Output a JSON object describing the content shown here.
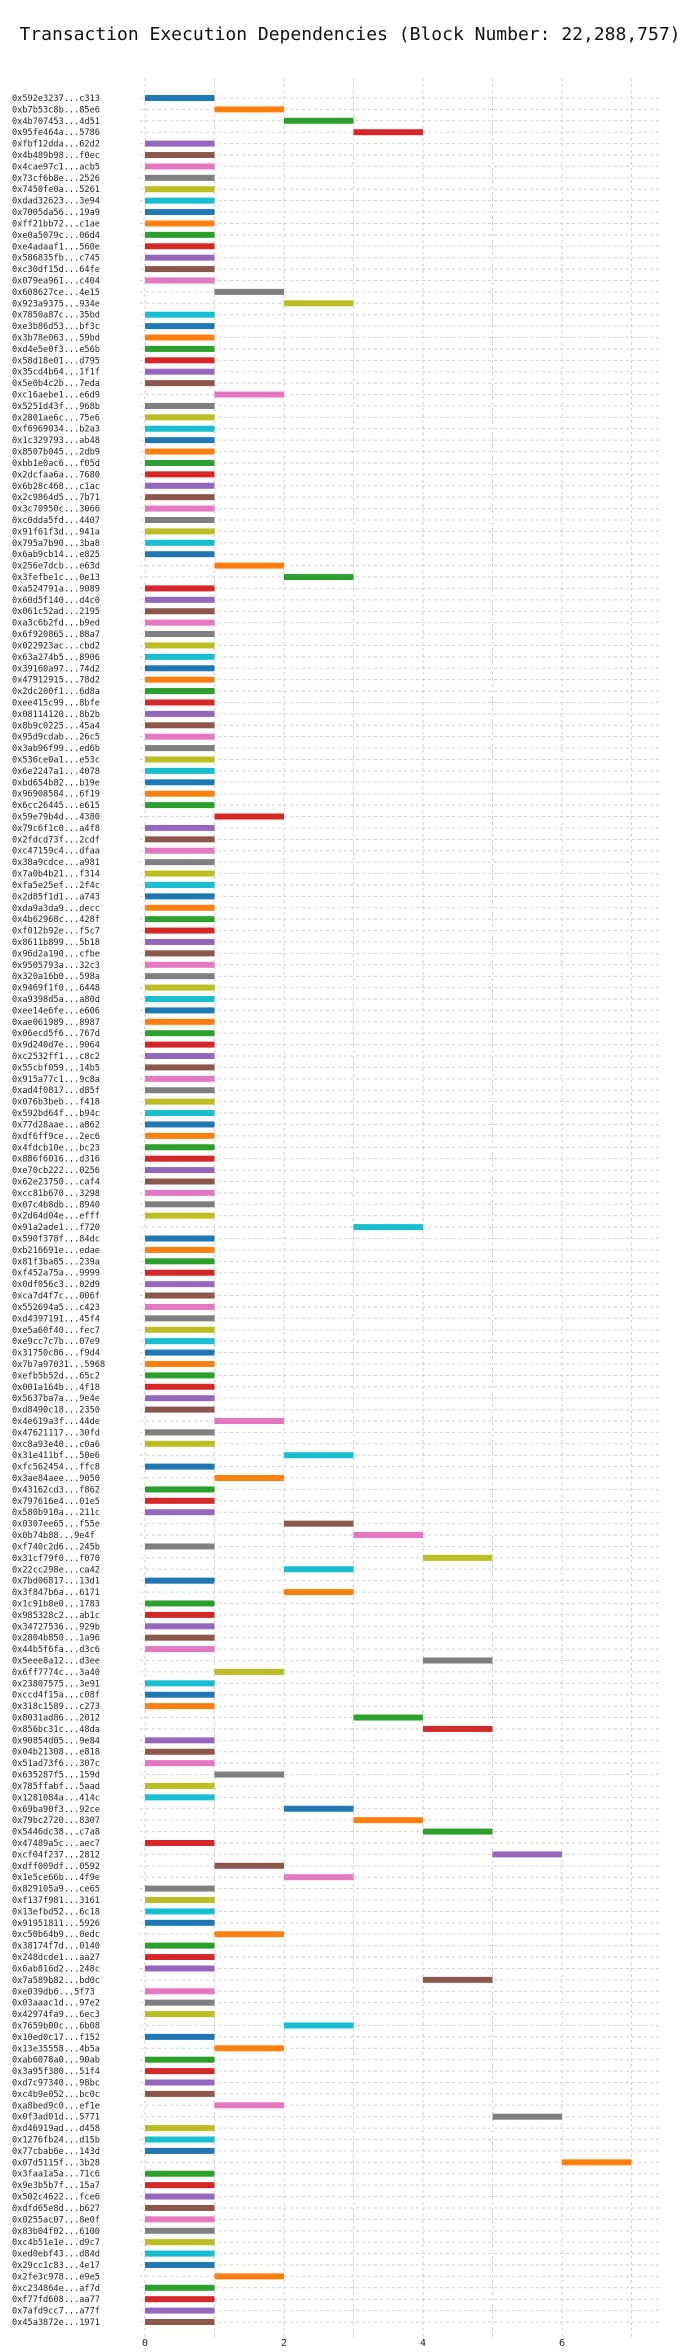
{
  "chart_data": {
    "type": "bar",
    "orientation": "horizontal-gantt",
    "title": "Transaction Execution Dependencies (Block Number: 22,288,757)",
    "xlabel": "",
    "ylabel": "",
    "xlim": [
      0,
      7
    ],
    "x_ticks": [
      0,
      2,
      4,
      6
    ],
    "grid": true,
    "legend": "none",
    "palette": [
      "#1f77b4",
      "#ff7f0e",
      "#2ca02c",
      "#d62728",
      "#9467bd",
      "#8c564b",
      "#e377c2",
      "#7f7f7f",
      "#bcbd22",
      "#17becf"
    ],
    "tasks": [
      {
        "label": "0x592e3237...c313",
        "start": 0,
        "end": 1
      },
      {
        "label": "0xb7b53c8b...85e6",
        "start": 1,
        "end": 2
      },
      {
        "label": "0x4b707453...4d51",
        "start": 2,
        "end": 3
      },
      {
        "label": "0x95fe464a...5786",
        "start": 3,
        "end": 4
      },
      {
        "label": "0xfbf12dda...62d2",
        "start": 0,
        "end": 1
      },
      {
        "label": "0x4b489b98...f0ec",
        "start": 0,
        "end": 1
      },
      {
        "label": "0x4cae97c1...acb5",
        "start": 0,
        "end": 1
      },
      {
        "label": "0x73cf6b8e...2526",
        "start": 0,
        "end": 1
      },
      {
        "label": "0x7450fe0a...5261",
        "start": 0,
        "end": 1
      },
      {
        "label": "0xdad32623...3e94",
        "start": 0,
        "end": 1
      },
      {
        "label": "0x7005da56...19a9",
        "start": 0,
        "end": 1
      },
      {
        "label": "0xff21bb72...c1ae",
        "start": 0,
        "end": 1
      },
      {
        "label": "0xe0a5079c...06d4",
        "start": 0,
        "end": 1
      },
      {
        "label": "0xe4adaaf1...560e",
        "start": 0,
        "end": 1
      },
      {
        "label": "0x586835fb...c745",
        "start": 0,
        "end": 1
      },
      {
        "label": "0xc30df15d...64fe",
        "start": 0,
        "end": 1
      },
      {
        "label": "0x079ea961...c404",
        "start": 0,
        "end": 1
      },
      {
        "label": "0x608627ce...4e15",
        "start": 1,
        "end": 2
      },
      {
        "label": "0x923a9375...934e",
        "start": 2,
        "end": 3
      },
      {
        "label": "0x7850a87c...35bd",
        "start": 0,
        "end": 1
      },
      {
        "label": "0xe3b86d53...bf3c",
        "start": 0,
        "end": 1
      },
      {
        "label": "0x3b78e063...59bd",
        "start": 0,
        "end": 1
      },
      {
        "label": "0xd4e5e0f3...e56b",
        "start": 0,
        "end": 1
      },
      {
        "label": "0x58d18e01...d795",
        "start": 0,
        "end": 1
      },
      {
        "label": "0x35cd4b64...1f1f",
        "start": 0,
        "end": 1
      },
      {
        "label": "0x5e0b4c2b...7eda",
        "start": 0,
        "end": 1
      },
      {
        "label": "0xc16aebe1...e6d9",
        "start": 1,
        "end": 2
      },
      {
        "label": "0x5251d43f...968b",
        "start": 0,
        "end": 1
      },
      {
        "label": "0x2801ae6c...75e6",
        "start": 0,
        "end": 1
      },
      {
        "label": "0xf6969034...b2a3",
        "start": 0,
        "end": 1
      },
      {
        "label": "0x1c329793...ab48",
        "start": 0,
        "end": 1
      },
      {
        "label": "0x8507b045...2db9",
        "start": 0,
        "end": 1
      },
      {
        "label": "0xbb1e0ac6...f05d",
        "start": 0,
        "end": 1
      },
      {
        "label": "0x2dcfaa6a...7680",
        "start": 0,
        "end": 1
      },
      {
        "label": "0x6b28c468...c1ac",
        "start": 0,
        "end": 1
      },
      {
        "label": "0x2c9864d5...7b71",
        "start": 0,
        "end": 1
      },
      {
        "label": "0x3c70950c...3066",
        "start": 0,
        "end": 1
      },
      {
        "label": "0xc0dda5fd...4407",
        "start": 0,
        "end": 1
      },
      {
        "label": "0x91f61f3d...941a",
        "start": 0,
        "end": 1
      },
      {
        "label": "0x795a7b90...3ba8",
        "start": 0,
        "end": 1
      },
      {
        "label": "0x6ab9cb14...e825",
        "start": 0,
        "end": 1
      },
      {
        "label": "0x256e7dcb...e63d",
        "start": 1,
        "end": 2
      },
      {
        "label": "0x3fefbe1c...0e13",
        "start": 2,
        "end": 3
      },
      {
        "label": "0xa524791a...9089",
        "start": 0,
        "end": 1
      },
      {
        "label": "0x60d5f140...d4c0",
        "start": 0,
        "end": 1
      },
      {
        "label": "0x061c52ad...2195",
        "start": 0,
        "end": 1
      },
      {
        "label": "0xa3c6b2fd...b9ed",
        "start": 0,
        "end": 1
      },
      {
        "label": "0x6f920865...88a7",
        "start": 0,
        "end": 1
      },
      {
        "label": "0x022923ac...cbd2",
        "start": 0,
        "end": 1
      },
      {
        "label": "0x63a274b5...8906",
        "start": 0,
        "end": 1
      },
      {
        "label": "0x39160a97...74d2",
        "start": 0,
        "end": 1
      },
      {
        "label": "0x47912915...78d2",
        "start": 0,
        "end": 1
      },
      {
        "label": "0x2dc200f1...6d8a",
        "start": 0,
        "end": 1
      },
      {
        "label": "0xee415c99...8bfe",
        "start": 0,
        "end": 1
      },
      {
        "label": "0x08114120...8b2b",
        "start": 0,
        "end": 1
      },
      {
        "label": "0x8b9c0225...45a4",
        "start": 0,
        "end": 1
      },
      {
        "label": "0x95d9cdab...26c5",
        "start": 0,
        "end": 1
      },
      {
        "label": "0x3ab96f99...ed6b",
        "start": 0,
        "end": 1
      },
      {
        "label": "0x536ce0a1...e53c",
        "start": 0,
        "end": 1
      },
      {
        "label": "0x6e2247a1...4078",
        "start": 0,
        "end": 1
      },
      {
        "label": "0xbd654b82...b19e",
        "start": 0,
        "end": 1
      },
      {
        "label": "0x96908584...6f19",
        "start": 0,
        "end": 1
      },
      {
        "label": "0x6cc26445...e615",
        "start": 0,
        "end": 1
      },
      {
        "label": "0x59e79b4d...4380",
        "start": 1,
        "end": 2
      },
      {
        "label": "0x79c6f1c0...a4f8",
        "start": 0,
        "end": 1
      },
      {
        "label": "0x2fdcd73f...2cdf",
        "start": 0,
        "end": 1
      },
      {
        "label": "0xc47159c4...dfaa",
        "start": 0,
        "end": 1
      },
      {
        "label": "0x38a9cdce...a981",
        "start": 0,
        "end": 1
      },
      {
        "label": "0x7a0b4b21...f314",
        "start": 0,
        "end": 1
      },
      {
        "label": "0xfa5e25ef...2f4c",
        "start": 0,
        "end": 1
      },
      {
        "label": "0x2d85f1d1...a743",
        "start": 0,
        "end": 1
      },
      {
        "label": "0xda9a3da9...decc",
        "start": 0,
        "end": 1
      },
      {
        "label": "0x4b62968c...428f",
        "start": 0,
        "end": 1
      },
      {
        "label": "0xf012b92e...f5c7",
        "start": 0,
        "end": 1
      },
      {
        "label": "0x8611b899...5b18",
        "start": 0,
        "end": 1
      },
      {
        "label": "0x96d2a190...cfbe",
        "start": 0,
        "end": 1
      },
      {
        "label": "0x9505793a...32c3",
        "start": 0,
        "end": 1
      },
      {
        "label": "0x320a16b0...598a",
        "start": 0,
        "end": 1
      },
      {
        "label": "0x9469f1f0...6448",
        "start": 0,
        "end": 1
      },
      {
        "label": "0xa9398d5a...a80d",
        "start": 0,
        "end": 1
      },
      {
        "label": "0xee14e6fe...e606",
        "start": 0,
        "end": 1
      },
      {
        "label": "0xae061989...8987",
        "start": 0,
        "end": 1
      },
      {
        "label": "0x06ecd5f6...767d",
        "start": 0,
        "end": 1
      },
      {
        "label": "0x9d240d7e...9064",
        "start": 0,
        "end": 1
      },
      {
        "label": "0xc2532ff1...c8c2",
        "start": 0,
        "end": 1
      },
      {
        "label": "0x55cbf059...14b5",
        "start": 0,
        "end": 1
      },
      {
        "label": "0x915a77c1...9c8a",
        "start": 0,
        "end": 1
      },
      {
        "label": "0xad4f0817...d85f",
        "start": 0,
        "end": 1
      },
      {
        "label": "0x076b3beb...f418",
        "start": 0,
        "end": 1
      },
      {
        "label": "0x592bd64f...b94c",
        "start": 0,
        "end": 1
      },
      {
        "label": "0x77d28aae...a862",
        "start": 0,
        "end": 1
      },
      {
        "label": "0xdf6ff9ce...2ec6",
        "start": 0,
        "end": 1
      },
      {
        "label": "0x4fdcb10e...bc23",
        "start": 0,
        "end": 1
      },
      {
        "label": "0x886f6016...d316",
        "start": 0,
        "end": 1
      },
      {
        "label": "0xe70cb222...0256",
        "start": 0,
        "end": 1
      },
      {
        "label": "0x62e23750...caf4",
        "start": 0,
        "end": 1
      },
      {
        "label": "0xcc81b670...3298",
        "start": 0,
        "end": 1
      },
      {
        "label": "0x07c4b8db...8940",
        "start": 0,
        "end": 1
      },
      {
        "label": "0x2d64d04e...efff",
        "start": 0,
        "end": 1
      },
      {
        "label": "0x91a2ade1...f720",
        "start": 3,
        "end": 4
      },
      {
        "label": "0x590f378f...84dc",
        "start": 0,
        "end": 1
      },
      {
        "label": "0xb216691e...edae",
        "start": 0,
        "end": 1
      },
      {
        "label": "0x81f3ba85...239a",
        "start": 0,
        "end": 1
      },
      {
        "label": "0xf452a75a...9999",
        "start": 0,
        "end": 1
      },
      {
        "label": "0x0df056c3...02d9",
        "start": 0,
        "end": 1
      },
      {
        "label": "0xca7d4f7c...006f",
        "start": 0,
        "end": 1
      },
      {
        "label": "0x552694a5...c423",
        "start": 0,
        "end": 1
      },
      {
        "label": "0xd4397191...45f4",
        "start": 0,
        "end": 1
      },
      {
        "label": "0xe5a60f40...fec7",
        "start": 0,
        "end": 1
      },
      {
        "label": "0xe9cc7c7b...07e9",
        "start": 0,
        "end": 1
      },
      {
        "label": "0x31750c86...f9d4",
        "start": 0,
        "end": 1
      },
      {
        "label": "0x7b7a97031...5968",
        "start": 0,
        "end": 1
      },
      {
        "label": "0xefb5b52d...65c2",
        "start": 0,
        "end": 1
      },
      {
        "label": "0x001a164b...4f18",
        "start": 0,
        "end": 1
      },
      {
        "label": "0x5637ba7a...9e4e",
        "start": 0,
        "end": 1
      },
      {
        "label": "0xd8490c18...2350",
        "start": 0,
        "end": 1
      },
      {
        "label": "0x4e619a3f...44de",
        "start": 1,
        "end": 2
      },
      {
        "label": "0x47621117...30fd",
        "start": 0,
        "end": 1
      },
      {
        "label": "0xc8a93e40...c0a6",
        "start": 0,
        "end": 1
      },
      {
        "label": "0x31e411bf...50e6",
        "start": 2,
        "end": 3
      },
      {
        "label": "0xfc562454...ffc8",
        "start": 0,
        "end": 1
      },
      {
        "label": "0x3ae84aee...9050",
        "start": 1,
        "end": 2
      },
      {
        "label": "0x43162cd3...f862",
        "start": 0,
        "end": 1
      },
      {
        "label": "0x797616e4...01e5",
        "start": 0,
        "end": 1
      },
      {
        "label": "0x580b910a...211c",
        "start": 0,
        "end": 1
      },
      {
        "label": "0x0307ee65...f55e",
        "start": 2,
        "end": 3
      },
      {
        "label": "0x0b74b88...9e4f",
        "start": 3,
        "end": 4
      },
      {
        "label": "0xf740c2d6...245b",
        "start": 0,
        "end": 1
      },
      {
        "label": "0x31cf79f0...f070",
        "start": 4,
        "end": 5
      },
      {
        "label": "0x22cc298e...ca42",
        "start": 2,
        "end": 3
      },
      {
        "label": "0x7bd06817...13d1",
        "start": 0,
        "end": 1
      },
      {
        "label": "0x3f847b6a...6171",
        "start": 2,
        "end": 3
      },
      {
        "label": "0x1c91b8e0...1783",
        "start": 0,
        "end": 1
      },
      {
        "label": "0x985328c2...ab1c",
        "start": 0,
        "end": 1
      },
      {
        "label": "0x34727536...929b",
        "start": 0,
        "end": 1
      },
      {
        "label": "0x2804b850...1a96",
        "start": 0,
        "end": 1
      },
      {
        "label": "0x44b5f6fa...d3c6",
        "start": 0,
        "end": 1
      },
      {
        "label": "0x5eee8a12...d3ee",
        "start": 4,
        "end": 5
      },
      {
        "label": "0x6ff7774c...3a40",
        "start": 1,
        "end": 2
      },
      {
        "label": "0x23807575...3e91",
        "start": 0,
        "end": 1
      },
      {
        "label": "0xccd4f15a...c08f",
        "start": 0,
        "end": 1
      },
      {
        "label": "0x318c1589...c273",
        "start": 0,
        "end": 1
      },
      {
        "label": "0x8031ad86...2012",
        "start": 3,
        "end": 4
      },
      {
        "label": "0x856bc31c...48da",
        "start": 4,
        "end": 5
      },
      {
        "label": "0x90854d05...9e84",
        "start": 0,
        "end": 1
      },
      {
        "label": "0x04b21308...e818",
        "start": 0,
        "end": 1
      },
      {
        "label": "0x51ad73f6...307c",
        "start": 0,
        "end": 1
      },
      {
        "label": "0x635287f5...159d",
        "start": 1,
        "end": 2
      },
      {
        "label": "0x785ffabf...5aad",
        "start": 0,
        "end": 1
      },
      {
        "label": "0x1281084a...414c",
        "start": 0,
        "end": 1
      },
      {
        "label": "0x69ba90f3...92ce",
        "start": 2,
        "end": 3
      },
      {
        "label": "0x79bc2720...8307",
        "start": 3,
        "end": 4
      },
      {
        "label": "0x5446dc38...c7a8",
        "start": 4,
        "end": 5
      },
      {
        "label": "0x47489a5c...aec7",
        "start": 0,
        "end": 1
      },
      {
        "label": "0xcf04f237...2812",
        "start": 5,
        "end": 6
      },
      {
        "label": "0xdff009df...0592",
        "start": 1,
        "end": 2
      },
      {
        "label": "0x1e5ce66b...4f9e",
        "start": 2,
        "end": 3
      },
      {
        "label": "0x829105a9...ce65",
        "start": 0,
        "end": 1
      },
      {
        "label": "0xf137f981...3161",
        "start": 0,
        "end": 1
      },
      {
        "label": "0x13efbd52...6c18",
        "start": 0,
        "end": 1
      },
      {
        "label": "0x91951811...5926",
        "start": 0,
        "end": 1
      },
      {
        "label": "0xc50b64b9...0edc",
        "start": 1,
        "end": 2
      },
      {
        "label": "0x38174f7d...0140",
        "start": 0,
        "end": 1
      },
      {
        "label": "0x248dcde1...aa27",
        "start": 0,
        "end": 1
      },
      {
        "label": "0x6ab816d2...248c",
        "start": 0,
        "end": 1
      },
      {
        "label": "0x7a589b82...bd0c",
        "start": 4,
        "end": 5
      },
      {
        "label": "0xe039db6...5f73",
        "start": 0,
        "end": 1
      },
      {
        "label": "0x03aaac1d...97e2",
        "start": 0,
        "end": 1
      },
      {
        "label": "0x42974fa9...6ec3",
        "start": 0,
        "end": 1
      },
      {
        "label": "0x7659b00c...6b08",
        "start": 2,
        "end": 3
      },
      {
        "label": "0x10ed0c17...f152",
        "start": 0,
        "end": 1
      },
      {
        "label": "0x13e35558...4b5a",
        "start": 1,
        "end": 2
      },
      {
        "label": "0xab6078a0...90ab",
        "start": 0,
        "end": 1
      },
      {
        "label": "0x3a95f380...51f4",
        "start": 0,
        "end": 1
      },
      {
        "label": "0xd7c97340...98bc",
        "start": 0,
        "end": 1
      },
      {
        "label": "0xc4b9e052...bc0c",
        "start": 0,
        "end": 1
      },
      {
        "label": "0xa8bed9c0...ef1e",
        "start": 1,
        "end": 2
      },
      {
        "label": "0x0f3ad01d...5771",
        "start": 5,
        "end": 6
      },
      {
        "label": "0xd46919ad...d458",
        "start": 0,
        "end": 1
      },
      {
        "label": "0x1276fb24...d15b",
        "start": 0,
        "end": 1
      },
      {
        "label": "0x77cbab6e...143d",
        "start": 0,
        "end": 1
      },
      {
        "label": "0x07d5115f...3b28",
        "start": 6,
        "end": 7
      },
      {
        "label": "0x3faa1a5a...71c6",
        "start": 0,
        "end": 1
      },
      {
        "label": "0x9e3b5b7f...15a7",
        "start": 0,
        "end": 1
      },
      {
        "label": "0x502c4622...fce6",
        "start": 0,
        "end": 1
      },
      {
        "label": "0xdfd65e8d...b627",
        "start": 0,
        "end": 1
      },
      {
        "label": "0x0255ac07...8e0f",
        "start": 0,
        "end": 1
      },
      {
        "label": "0x83b04f02...6100",
        "start": 0,
        "end": 1
      },
      {
        "label": "0xc4b51e1e...d9c7",
        "start": 0,
        "end": 1
      },
      {
        "label": "0xed0ebf43...d84d",
        "start": 0,
        "end": 1
      },
      {
        "label": "0x29cc1c83...4e17",
        "start": 0,
        "end": 1
      },
      {
        "label": "0x2fe3c978...e9e5",
        "start": 1,
        "end": 2
      },
      {
        "label": "0xc234864e...af7d",
        "start": 0,
        "end": 1
      },
      {
        "label": "0xf77fd608...aa77",
        "start": 0,
        "end": 1
      },
      {
        "label": "0x7afd9cc7...a77f",
        "start": 0,
        "end": 1
      },
      {
        "label": "0x45a3872e...1971",
        "start": 0,
        "end": 1
      }
    ]
  }
}
